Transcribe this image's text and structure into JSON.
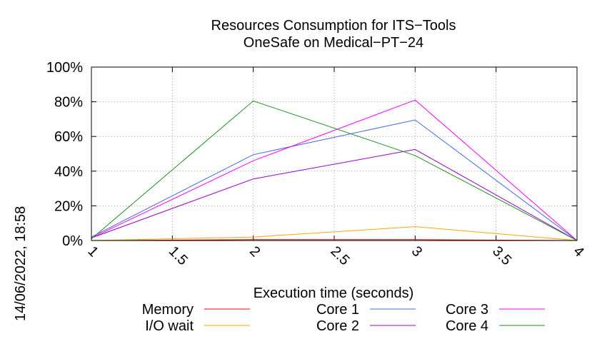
{
  "chart_data": {
    "type": "line",
    "title": "Resources Consumption for ITS−Tools",
    "subtitle": "OneSafe on Medical−PT−24",
    "xlabel": "Execution time (seconds)",
    "ylabel": "",
    "timestamp": "14/06/2022, 18:58",
    "xlim": [
      1,
      4
    ],
    "ylim": [
      0,
      100
    ],
    "x_ticks": [
      "1",
      "1.5",
      "2",
      "2.5",
      "3",
      "3.5",
      "4"
    ],
    "x_tick_values": [
      1,
      1.5,
      2,
      2.5,
      3,
      3.5,
      4
    ],
    "y_ticks": [
      "0%",
      "20%",
      "40%",
      "60%",
      "80%",
      "100%"
    ],
    "y_tick_values": [
      0,
      20,
      40,
      60,
      80,
      100
    ],
    "grid": true,
    "legend_position": "bottom",
    "series": [
      {
        "name": "Memory",
        "color": "#ff0000",
        "x": [
          1,
          2,
          3,
          4
        ],
        "y": [
          0,
          0.5,
          0.5,
          0
        ]
      },
      {
        "name": "I/O wait",
        "color": "#ffa500",
        "x": [
          1,
          2,
          3,
          4
        ],
        "y": [
          0,
          2,
          8,
          0
        ]
      },
      {
        "name": "Core 1",
        "color": "#4169e1",
        "x": [
          1,
          2,
          3,
          4
        ],
        "y": [
          2,
          49.5,
          69.5,
          0
        ]
      },
      {
        "name": "Core 2",
        "color": "#9400d3",
        "x": [
          1,
          2,
          3,
          4
        ],
        "y": [
          1.5,
          35.5,
          52.5,
          0
        ]
      },
      {
        "name": "Core 3",
        "color": "#ff00ff",
        "x": [
          1,
          2,
          3,
          4
        ],
        "y": [
          1.5,
          46,
          81,
          0
        ]
      },
      {
        "name": "Core 4",
        "color": "#228b22",
        "x": [
          1,
          2,
          3,
          4
        ],
        "y": [
          1,
          80.5,
          49,
          0
        ]
      }
    ]
  }
}
